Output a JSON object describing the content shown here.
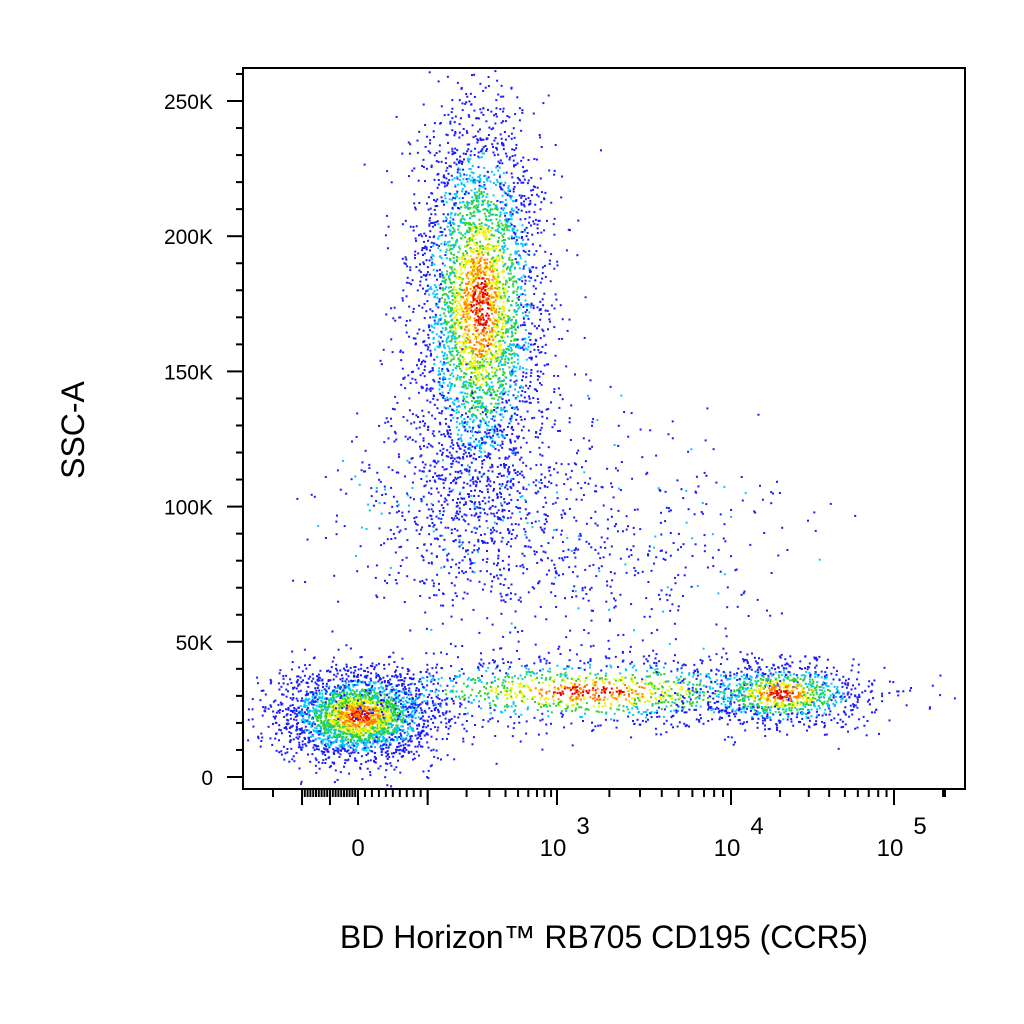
{
  "chart_data": {
    "type": "scatter",
    "title": "",
    "xlabel": "BD Horizon™ RB705 CD195 (CCR5)",
    "ylabel": "SSC-A",
    "x_scale": "biexponential",
    "xlim": [
      -300,
      100000
    ],
    "ylim": [
      0,
      262144
    ],
    "grid": false,
    "density_colored": true,
    "density_colors": [
      "#1a1aff",
      "#00c8ff",
      "#2fd12f",
      "#f2f200",
      "#ff7f00",
      "#e80000"
    ],
    "y_ticks": [
      {
        "value": 0,
        "label": "0"
      },
      {
        "value": 50000,
        "label": "50K"
      },
      {
        "value": 100000,
        "label": "100K"
      },
      {
        "value": 150000,
        "label": "150K"
      },
      {
        "value": 200000,
        "label": "200K"
      },
      {
        "value": 250000,
        "label": "250K"
      }
    ],
    "x_ticks": [
      {
        "value": 0,
        "label": "0",
        "exp": ""
      },
      {
        "value": 1000,
        "label": "10",
        "exp": "3"
      },
      {
        "value": 10000,
        "label": "10",
        "exp": "4"
      },
      {
        "value": 100000,
        "label": "10",
        "exp": "5"
      }
    ],
    "populations": [
      {
        "name": "",
        "x_center": 0,
        "y_center": 23000,
        "n": 2600
      },
      {
        "name": "",
        "x_center": 250,
        "y_center": 175000,
        "n": 3800
      },
      {
        "name": "",
        "x_center": 200,
        "y_center": 100000,
        "n": 700
      },
      {
        "name": "",
        "x_center": 2000,
        "y_center": 85000,
        "n": 450
      },
      {
        "name": "",
        "x_center": 1500,
        "y_center": 32000,
        "n": 1300
      },
      {
        "name": "",
        "x_center": 20000,
        "y_center": 31000,
        "n": 1000
      }
    ]
  }
}
